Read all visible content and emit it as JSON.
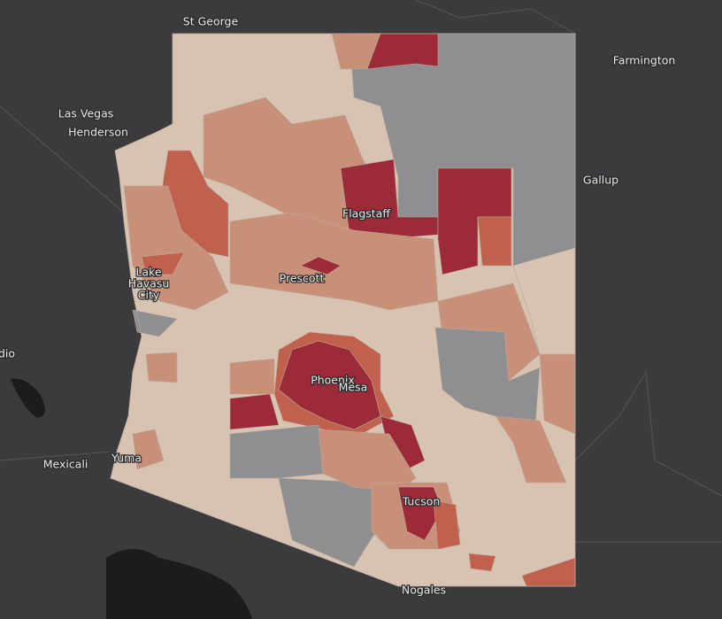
{
  "map": {
    "places": [
      "St George",
      "Farmington",
      "Las Vegas",
      "Henderson",
      "Gallup",
      "Flagstaff",
      "Prescott",
      "Phoenix",
      "Mesa",
      "dio",
      "Mexicali",
      "Yuma",
      "Tucson",
      "Nogales"
    ],
    "lake_havasu_city": [
      "Lake",
      "Havasu",
      "City"
    ]
  }
}
